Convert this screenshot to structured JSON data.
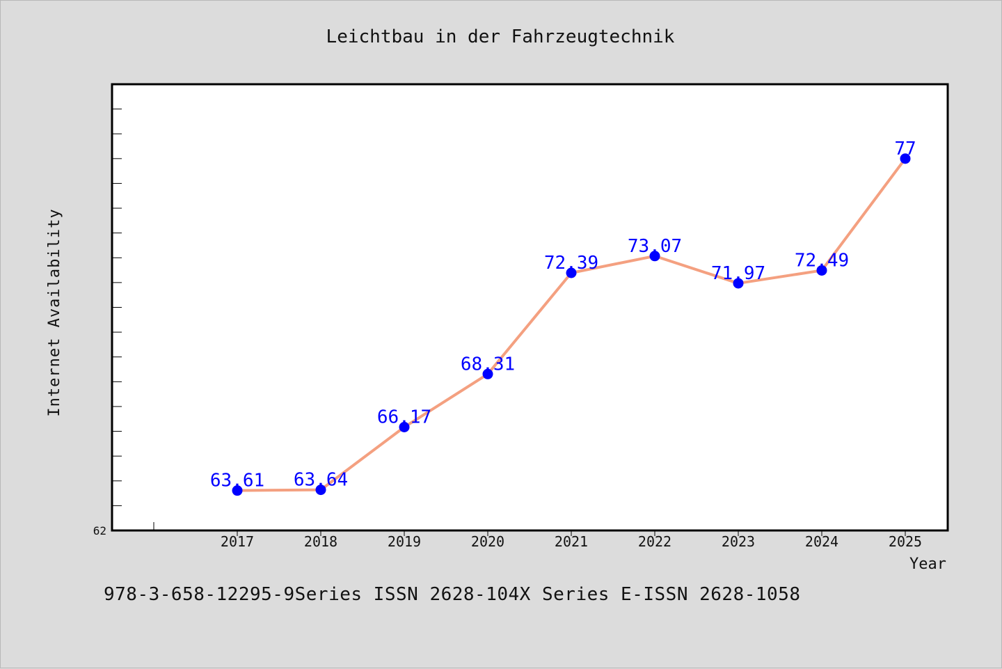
{
  "chart_data": {
    "type": "line",
    "title": "Leichtbau in der Fahrzeugtechnik",
    "xlabel": "Year",
    "ylabel": "Internet Availability",
    "x": [
      "2017",
      "2018",
      "2019",
      "2020",
      "2021",
      "2022",
      "2023",
      "2024",
      "2025"
    ],
    "series": [
      {
        "values": [
          63.61,
          63.64,
          66.17,
          68.31,
          72.39,
          73.07,
          71.97,
          72.49,
          77
        ],
        "data_labels": [
          "63.61",
          "63.64",
          "66.17",
          "68.31",
          "72.39",
          "73.07",
          "71.97",
          "72.49",
          "77"
        ]
      }
    ],
    "ylim": [
      62,
      80
    ],
    "y_tick_labels": [
      "62"
    ],
    "grid": false,
    "legend": "none",
    "line_color": "#f4a080",
    "marker_color": "#0000ff",
    "label_color": "#0000ff"
  },
  "footer": "978-3-658-12295-9Series ISSN 2628-104X Series E-ISSN 2628-1058"
}
